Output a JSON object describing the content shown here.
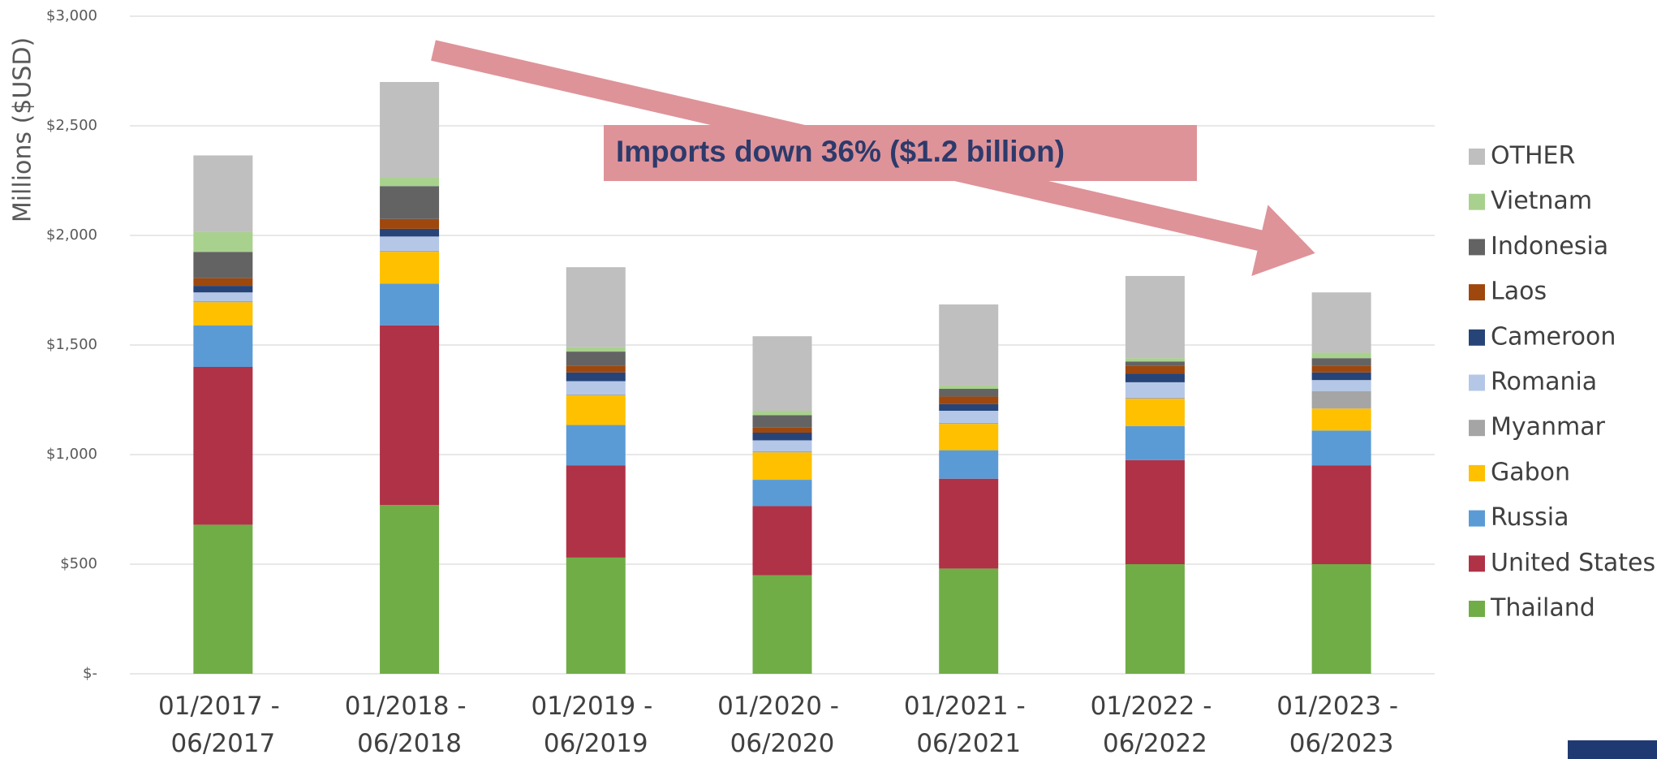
{
  "chart_data": {
    "type": "stacked_bar",
    "y_label": "Millions ($USD)",
    "annotation": "Imports down 36% ($1.2 billion)",
    "categories": [
      "01/2017 - 06/2017",
      "01/2018 - 06/2018",
      "01/2019 - 06/2019",
      "01/2020 - 06/2020",
      "01/2021 - 06/2021",
      "01/2022 - 06/2022",
      "01/2023 - 06/2023"
    ],
    "series": [
      {
        "name": "Thailand",
        "color": "#70ad47",
        "values": [
          680,
          770,
          530,
          450,
          480,
          500,
          500
        ]
      },
      {
        "name": "United States",
        "color": "#b03246",
        "values": [
          720,
          820,
          420,
          315,
          410,
          475,
          450
        ]
      },
      {
        "name": "Russia",
        "color": "#5b9bd5",
        "values": [
          190,
          190,
          185,
          120,
          130,
          155,
          160
        ]
      },
      {
        "name": "Gabon",
        "color": "#ffc000",
        "values": [
          105,
          145,
          135,
          125,
          120,
          125,
          100
        ]
      },
      {
        "name": "Myanmar",
        "color": "#a5a5a5",
        "values": [
          5,
          5,
          5,
          5,
          5,
          5,
          80
        ]
      },
      {
        "name": "Romania",
        "color": "#b4c7e7",
        "values": [
          40,
          65,
          60,
          50,
          55,
          70,
          50
        ]
      },
      {
        "name": "Cameroon",
        "color": "#264478",
        "values": [
          30,
          35,
          40,
          35,
          30,
          40,
          35
        ]
      },
      {
        "name": "Laos",
        "color": "#9e480e",
        "values": [
          35,
          45,
          30,
          25,
          35,
          35,
          30
        ]
      },
      {
        "name": "Indonesia",
        "color": "#636363",
        "values": [
          120,
          150,
          65,
          55,
          35,
          20,
          35
        ]
      },
      {
        "name": "Vietnam",
        "color": "#a9d18e",
        "values": [
          90,
          40,
          20,
          20,
          15,
          15,
          25
        ]
      },
      {
        "name": "OTHER",
        "color": "#bfbfbf",
        "values": [
          350,
          435,
          365,
          340,
          370,
          375,
          275
        ]
      }
    ],
    "ylim": [
      0,
      3000
    ],
    "yticks": [
      {
        "value": 0,
        "label": "$-"
      },
      {
        "value": 500,
        "label": "$500"
      },
      {
        "value": 1000,
        "label": "$1,000"
      },
      {
        "value": 1500,
        "label": "$1,500"
      },
      {
        "value": 2000,
        "label": "$2,000"
      },
      {
        "value": 2500,
        "label": "$2,500"
      },
      {
        "value": 3000,
        "label": "$3,000"
      }
    ],
    "grid": true,
    "legend": "right"
  }
}
